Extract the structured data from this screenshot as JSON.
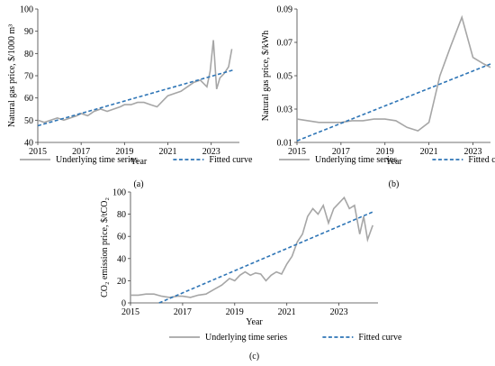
{
  "colors": {
    "series": "#a6a6a6",
    "fit": "#2e75b6",
    "axis": "#404040"
  },
  "chart_data": [
    {
      "type": "line",
      "panel_label": "(a)",
      "xlabel": "Year",
      "ylabel": "Natural gas price, $/1000 m³",
      "xlim": [
        2015,
        2024.3
      ],
      "ylim": [
        40,
        100
      ],
      "xticks": [
        "2015",
        "2017",
        "2019",
        "2021",
        "2023"
      ],
      "yticks": [
        "40",
        "50",
        "60",
        "70",
        "80",
        "90",
        "100"
      ],
      "series": [
        {
          "name": "Underlying time series",
          "style": "solid",
          "x": [
            2015.0,
            2015.3,
            2015.6,
            2015.9,
            2016.2,
            2016.5,
            2016.8,
            2017.0,
            2017.3,
            2017.6,
            2017.9,
            2018.2,
            2018.5,
            2018.8,
            2019.0,
            2019.3,
            2019.6,
            2019.9,
            2020.2,
            2020.5,
            2020.8,
            2021.0,
            2021.3,
            2021.6,
            2021.9,
            2022.2,
            2022.5,
            2022.8,
            2022.95,
            2023.1,
            2023.25,
            2023.4,
            2023.6,
            2023.8,
            2023.95
          ],
          "y": [
            50,
            49,
            50,
            51,
            50,
            51,
            52,
            53,
            52,
            54,
            55,
            54,
            55,
            56,
            57,
            57,
            58,
            58,
            57,
            56,
            59,
            61,
            62,
            63,
            65,
            67,
            68,
            65,
            72,
            86,
            64,
            69,
            71,
            74,
            82
          ]
        },
        {
          "name": "Fitted curve",
          "style": "dashed",
          "x": [
            2015.0,
            2024.0
          ],
          "y": [
            47.5,
            72.5
          ]
        }
      ],
      "legend_position": "bottom"
    },
    {
      "type": "line",
      "panel_label": "(b)",
      "xlabel": "Year",
      "ylabel": "Natural gas price, $/kWh",
      "xlim": [
        2015,
        2023.8
      ],
      "ylim": [
        0.01,
        0.09
      ],
      "xticks": [
        "2015",
        "2017",
        "2019",
        "2021",
        "2023"
      ],
      "yticks": [
        "0.01",
        "0.03",
        "0.05",
        "0.07",
        "0.09"
      ],
      "series": [
        {
          "name": "Underlying time series",
          "style": "solid",
          "x": [
            2015.0,
            2015.5,
            2016.0,
            2016.5,
            2017.0,
            2017.5,
            2018.0,
            2018.5,
            2019.0,
            2019.5,
            2020.0,
            2020.5,
            2021.0,
            2021.5,
            2022.0,
            2022.5,
            2023.0,
            2023.5,
            2023.8
          ],
          "y": [
            0.024,
            0.023,
            0.022,
            0.022,
            0.022,
            0.023,
            0.023,
            0.024,
            0.024,
            0.023,
            0.019,
            0.017,
            0.022,
            0.05,
            0.068,
            0.085,
            0.061,
            0.057,
            0.055
          ]
        },
        {
          "name": "Fitted curve",
          "style": "dashed",
          "x": [
            2015.0,
            2023.8
          ],
          "y": [
            0.011,
            0.057
          ]
        }
      ],
      "legend_position": "bottom"
    },
    {
      "type": "line",
      "panel_label": "(c)",
      "xlabel": "Year",
      "ylabel": "CO₂ emission price, $/tCO₂",
      "xlim": [
        2015,
        2024.5
      ],
      "ylim": [
        0,
        100
      ],
      "xticks": [
        "2015",
        "2017",
        "2019",
        "2021",
        "2023"
      ],
      "yticks": [
        "0",
        "20",
        "40",
        "60",
        "80",
        "100"
      ],
      "series": [
        {
          "name": "Underlying time series",
          "style": "solid",
          "x": [
            2015.0,
            2015.3,
            2015.6,
            2015.9,
            2016.2,
            2016.5,
            2016.8,
            2017.0,
            2017.3,
            2017.6,
            2017.9,
            2018.2,
            2018.5,
            2018.8,
            2019.0,
            2019.2,
            2019.4,
            2019.6,
            2019.8,
            2020.0,
            2020.2,
            2020.4,
            2020.6,
            2020.8,
            2021.0,
            2021.2,
            2021.4,
            2021.6,
            2021.8,
            2022.0,
            2022.2,
            2022.4,
            2022.6,
            2022.8,
            2023.0,
            2023.2,
            2023.4,
            2023.6,
            2023.8,
            2023.95,
            2024.1,
            2024.3
          ],
          "y": [
            7,
            7,
            8,
            8,
            6,
            5,
            6,
            6,
            5,
            7,
            8,
            12,
            16,
            22,
            20,
            25,
            28,
            25,
            27,
            26,
            20,
            25,
            28,
            26,
            35,
            42,
            55,
            62,
            78,
            85,
            80,
            88,
            72,
            85,
            90,
            95,
            85,
            88,
            62,
            78,
            57,
            70
          ]
        },
        {
          "name": "Fitted curve",
          "style": "dashed",
          "x": [
            2016.1,
            2024.3
          ],
          "y": [
            0,
            82
          ]
        }
      ],
      "legend_position": "bottom"
    }
  ]
}
